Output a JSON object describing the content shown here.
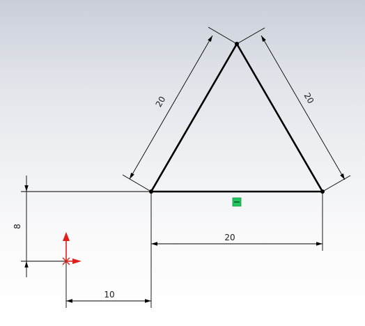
{
  "sketch": {
    "dimensions": {
      "left_side": "20",
      "right_side": "20",
      "base": "20",
      "height_offset": "8",
      "horizontal_offset": "10"
    },
    "relation_icon": "horizontal-relation-icon",
    "relation_color": "#22c55e",
    "origin_icon": "origin-axes-icon",
    "origin_x_color": "#e0201b",
    "origin_y_color": "#e0201b"
  }
}
